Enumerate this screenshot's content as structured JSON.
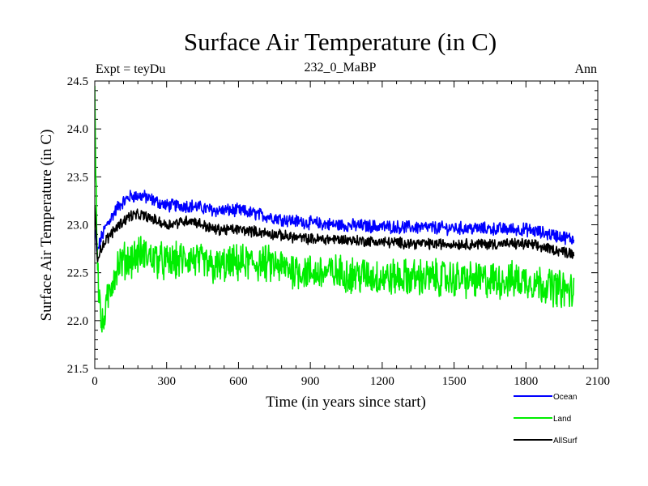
{
  "chart_data": {
    "type": "line",
    "title": "Surface Air Temperature (in C)",
    "subtitle": "232_0_MaBP",
    "left_label": "Expt = teyDu",
    "right_label": "Ann",
    "xlabel": "Time (in years since start)",
    "ylabel": "Surface Air Temperature (in C)",
    "xlim": [
      0,
      2100
    ],
    "ylim": [
      21.5,
      24.5
    ],
    "xticks": [
      0,
      300,
      600,
      900,
      1200,
      1500,
      1800,
      2100
    ],
    "xtick_labels": [
      "0",
      "300",
      "600",
      "900",
      "1200",
      "1500",
      "1800",
      "2100"
    ],
    "yticks": [
      21.5,
      22.0,
      22.5,
      23.0,
      23.5,
      24.0,
      24.5
    ],
    "ytick_labels": [
      "21.5",
      "22.0",
      "22.5",
      "23.0",
      "23.5",
      "24.0",
      "24.5"
    ],
    "legend_position": "bottom-right, below plot",
    "series": [
      {
        "name": "Ocean",
        "color": "#0000ff",
        "noise": 0.06,
        "x": [
          0,
          10,
          25,
          50,
          100,
          150,
          200,
          300,
          400,
          500,
          600,
          700,
          800,
          900,
          1000,
          1200,
          1400,
          1600,
          1800,
          2000
        ],
        "values": [
          22.95,
          22.7,
          22.85,
          23.0,
          23.2,
          23.3,
          23.3,
          23.2,
          23.2,
          23.15,
          23.15,
          23.1,
          23.05,
          23.02,
          23.0,
          22.98,
          22.97,
          22.96,
          22.95,
          22.85
        ]
      },
      {
        "name": "Land",
        "color": "#00ee00",
        "noise": 0.17,
        "x": [
          0,
          3,
          8,
          15,
          30,
          45,
          70,
          100,
          150,
          200,
          300,
          400,
          500,
          600,
          700,
          800,
          900,
          1000,
          1200,
          1400,
          1600,
          1800,
          2000
        ],
        "values": [
          24.45,
          23.8,
          23.0,
          22.4,
          21.9,
          22.1,
          22.4,
          22.6,
          22.65,
          22.7,
          22.6,
          22.65,
          22.55,
          22.6,
          22.6,
          22.55,
          22.5,
          22.5,
          22.45,
          22.45,
          22.42,
          22.42,
          22.3
        ]
      },
      {
        "name": "AllSurf",
        "color": "#000000",
        "noise": 0.05,
        "x": [
          0,
          10,
          25,
          50,
          100,
          150,
          200,
          300,
          400,
          500,
          600,
          700,
          800,
          900,
          1000,
          1200,
          1400,
          1600,
          1800,
          2000
        ],
        "values": [
          23.2,
          22.65,
          22.75,
          22.85,
          23.0,
          23.1,
          23.1,
          23.0,
          23.05,
          22.95,
          22.95,
          22.92,
          22.88,
          22.85,
          22.85,
          22.82,
          22.8,
          22.8,
          22.8,
          22.7
        ]
      }
    ]
  }
}
